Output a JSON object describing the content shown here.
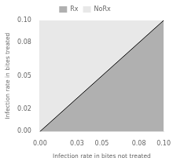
{
  "chart_data": {
    "type": "area",
    "x": [
      0.0,
      0.1
    ],
    "series": [
      {
        "name": "Rx",
        "color": "#b0b0b0",
        "values": [
          0.0,
          0.1
        ]
      },
      {
        "name": "NoRx",
        "color": "#e8e8e8",
        "values": [
          0.1,
          0.0
        ]
      },
      {
        "type": "line",
        "color": "#000000",
        "values": [
          0.0,
          0.1
        ]
      }
    ],
    "stacked": true,
    "xlabel": "Infection rate in bites not treated",
    "ylabel": "Infection rate in bites treated",
    "xlim": [
      0.0,
      0.1
    ],
    "ylim": [
      0.0,
      0.1
    ],
    "xticks": [
      {
        "value": 0.0,
        "label": "0.00"
      },
      0.03,
      0.05,
      0.08,
      {
        "value": 0.1,
        "label": "0.10"
      }
    ],
    "yticks": [
      {
        "value": 0.0,
        "label": "0.00"
      },
      0.02,
      0.05,
      0.08,
      {
        "value": 0.1,
        "label": "0.10"
      }
    ]
  }
}
